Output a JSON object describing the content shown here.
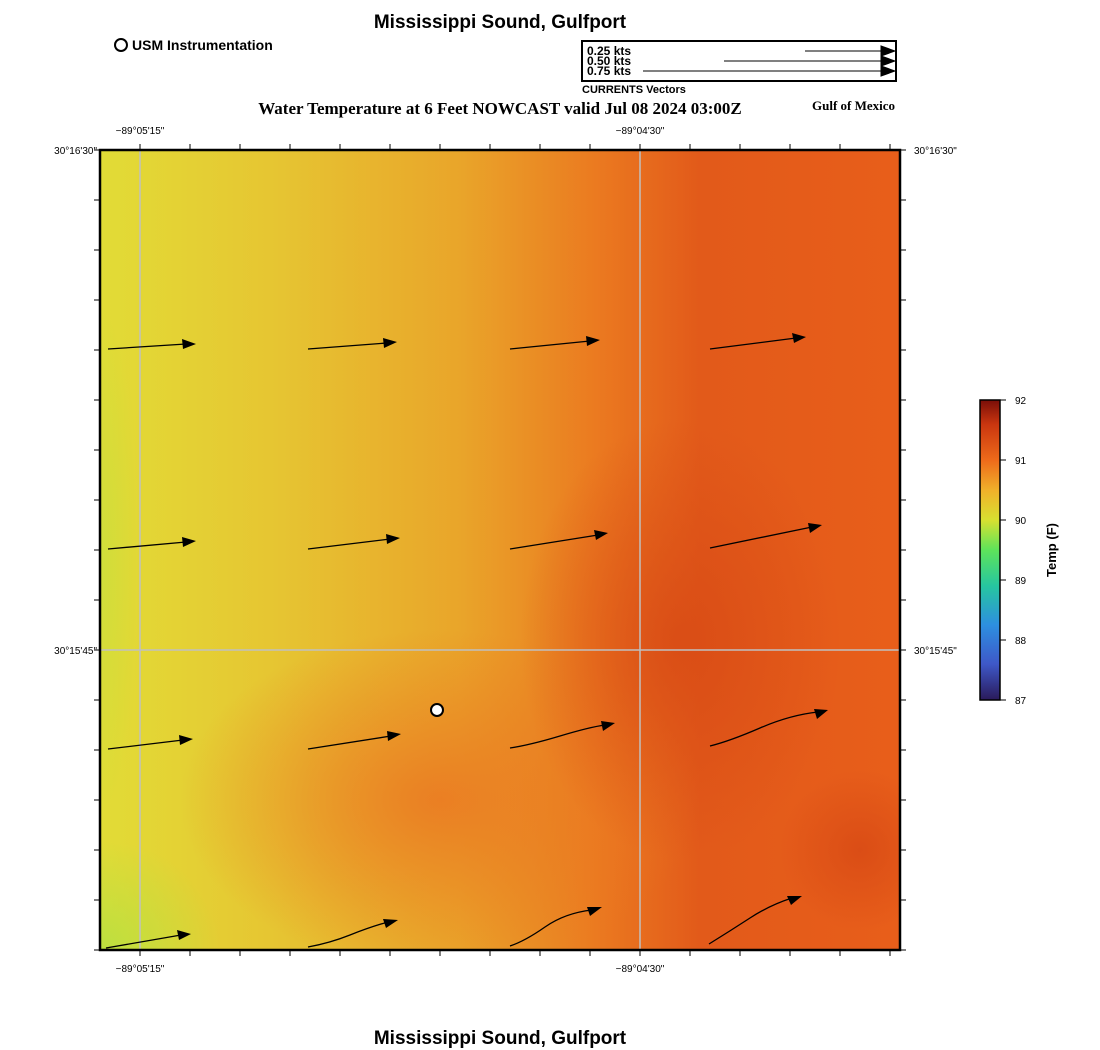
{
  "header": {
    "title": "Mississippi Sound, Gulfport",
    "subtitle": "Water Temperature at 6 Feet NOWCAST valid Jul 08 2024 03:00Z",
    "region": "Gulf of Mexico",
    "footer_title": "Mississippi Sound, Gulfport"
  },
  "legend": {
    "station_label": "USM Instrumentation",
    "vector_key": [
      {
        "label": "0.25 kts",
        "speed_kts": 0.25
      },
      {
        "label": "0.50 kts",
        "speed_kts": 0.5
      },
      {
        "label": "0.75 kts",
        "speed_kts": 0.75
      }
    ],
    "vector_caption": "CURRENTS Vectors"
  },
  "map": {
    "axes": {
      "top_lon_labels": [
        "−89°05'15\"",
        "−89°04'30\""
      ],
      "bottom_lon_labels": [
        "−89°05'15\"",
        "−89°04'30\""
      ],
      "left_lat_labels": [
        "30°16'30\"",
        "30°15'45\""
      ],
      "right_lat_labels": [
        "30°16'30\"",
        "30°15'45\""
      ]
    },
    "grid": true,
    "station": {
      "name": "USM Instrumentation",
      "lon": "−89°04'55\"",
      "lat": "30°15'39\""
    }
  },
  "colorbar": {
    "label": "Temp (F)",
    "ticks": [
      "92",
      "91",
      "90",
      "89",
      "88",
      "87"
    ],
    "min": 87,
    "max": 92
  },
  "colors": {
    "cool": "#e2dc36",
    "mid": "#eb9424",
    "warm": "#e0521a",
    "vector": "#000000",
    "grid": "#c0c0c0"
  }
}
